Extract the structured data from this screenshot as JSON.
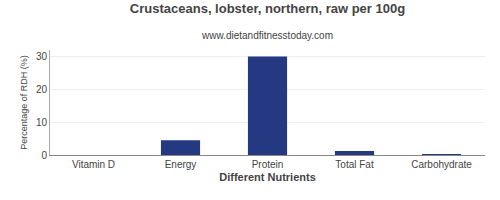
{
  "chart_data": {
    "type": "bar",
    "title": "Crustaceans, lobster, northern, raw per 100g",
    "subtitle": "www.dietandfitnesstoday.com",
    "xlabel": "Different Nutrients",
    "ylabel": "Percentage of RDH (%)",
    "categories": [
      "Vitamin D",
      "Energy",
      "Protein",
      "Total Fat",
      "Carbohydrate"
    ],
    "values": [
      0,
      4.5,
      30,
      1.2,
      0.1
    ],
    "color": "#253882",
    "ylim": [
      0,
      32
    ],
    "yticks": [
      0,
      10,
      20,
      30
    ],
    "grid": true
  }
}
